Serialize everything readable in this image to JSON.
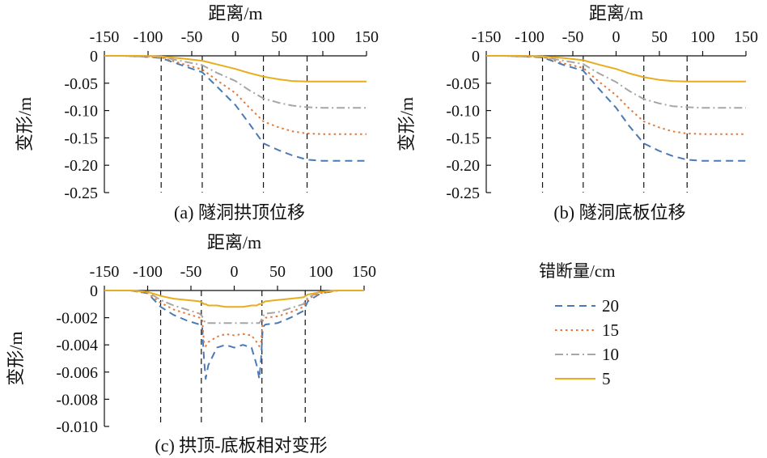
{
  "legend": {
    "title": "错断量/cm",
    "entries": [
      {
        "label": "20",
        "color": "#4a7ab5",
        "dash": "dashed"
      },
      {
        "label": "15",
        "color": "#e07a3c",
        "dash": "dotted"
      },
      {
        "label": "10",
        "color": "#a6a6a6",
        "dash": "dashdot"
      },
      {
        "label": "5",
        "color": "#e8ad1d",
        "dash": "solid"
      }
    ]
  },
  "chart_data": [
    {
      "id": "a",
      "type": "line",
      "caption": "(a) 隧洞拱顶位移",
      "xlabel": "距离/m",
      "ylabel": "变形/m",
      "xlim": [
        -150,
        150
      ],
      "ylim": [
        -0.25,
        0
      ],
      "xticks": [
        "-150",
        "-100",
        "-50",
        "0",
        "50",
        "100",
        "150"
      ],
      "yticks": [
        "0",
        "-0.05",
        "-0.10",
        "-0.15",
        "-0.20",
        "-0.25"
      ],
      "ytick_values": [
        0,
        -0.05,
        -0.1,
        -0.15,
        -0.2,
        -0.25
      ],
      "x_axis_position": "top",
      "reference_lines_x": [
        -85,
        -38,
        32,
        82
      ],
      "x": [
        -150,
        -130,
        -110,
        -85,
        -60,
        -38,
        -20,
        0,
        15,
        32,
        50,
        65,
        82,
        100,
        120,
        150
      ],
      "series": [
        {
          "name": "20",
          "values": [
            0,
            0,
            -0.001,
            -0.004,
            -0.018,
            -0.03,
            -0.058,
            -0.09,
            -0.122,
            -0.16,
            -0.173,
            -0.182,
            -0.19,
            -0.192,
            -0.192,
            -0.192
          ]
        },
        {
          "name": "15",
          "values": [
            0,
            0,
            -0.001,
            -0.003,
            -0.015,
            -0.025,
            -0.046,
            -0.068,
            -0.093,
            -0.12,
            -0.131,
            -0.138,
            -0.142,
            -0.143,
            -0.143,
            -0.143
          ]
        },
        {
          "name": "10",
          "values": [
            0,
            0,
            -0.001,
            -0.002,
            -0.01,
            -0.017,
            -0.032,
            -0.046,
            -0.062,
            -0.078,
            -0.086,
            -0.091,
            -0.094,
            -0.095,
            -0.095,
            -0.095
          ]
        },
        {
          "name": "5",
          "values": [
            0,
            0,
            0,
            -0.001,
            -0.005,
            -0.009,
            -0.016,
            -0.024,
            -0.031,
            -0.038,
            -0.043,
            -0.046,
            -0.047,
            -0.047,
            -0.047,
            -0.047
          ]
        }
      ]
    },
    {
      "id": "b",
      "type": "line",
      "caption": "(b) 隧洞底板位移",
      "xlabel": "距离/m",
      "ylabel": "变形/m",
      "xlim": [
        -150,
        150
      ],
      "ylim": [
        -0.25,
        0
      ],
      "xticks": [
        "-150",
        "-100",
        "-50",
        "0",
        "50",
        "100",
        "150"
      ],
      "yticks": [
        "0",
        "-0.05",
        "-0.10",
        "-0.15",
        "-0.20",
        "-0.25"
      ],
      "ytick_values": [
        0,
        -0.05,
        -0.1,
        -0.15,
        -0.2,
        -0.25
      ],
      "x_axis_position": "top",
      "reference_lines_x": [
        -85,
        -38,
        32,
        82
      ],
      "x": [
        -150,
        -130,
        -110,
        -85,
        -60,
        -38,
        -20,
        0,
        15,
        32,
        50,
        65,
        82,
        100,
        120,
        150
      ],
      "series": [
        {
          "name": "20",
          "values": [
            0,
            0,
            -0.001,
            -0.003,
            -0.017,
            -0.027,
            -0.06,
            -0.095,
            -0.128,
            -0.16,
            -0.174,
            -0.183,
            -0.19,
            -0.192,
            -0.192,
            -0.192
          ]
        },
        {
          "name": "15",
          "values": [
            0,
            0,
            -0.001,
            -0.002,
            -0.014,
            -0.022,
            -0.047,
            -0.072,
            -0.096,
            -0.12,
            -0.131,
            -0.138,
            -0.142,
            -0.143,
            -0.143,
            -0.143
          ]
        },
        {
          "name": "10",
          "values": [
            0,
            0,
            -0.001,
            -0.002,
            -0.009,
            -0.015,
            -0.032,
            -0.048,
            -0.064,
            -0.079,
            -0.087,
            -0.092,
            -0.094,
            -0.095,
            -0.095,
            -0.095
          ]
        },
        {
          "name": "5",
          "values": [
            0,
            0,
            0,
            -0.001,
            -0.004,
            -0.008,
            -0.016,
            -0.024,
            -0.032,
            -0.039,
            -0.044,
            -0.046,
            -0.047,
            -0.047,
            -0.047,
            -0.047
          ]
        }
      ]
    },
    {
      "id": "c",
      "type": "line",
      "caption": "(c) 拱顶-底板相对变形",
      "xlabel": "距离/m",
      "ylabel": "变形/m",
      "xlim": [
        -150,
        150
      ],
      "ylim": [
        -0.01,
        0
      ],
      "xticks": [
        "-150",
        "-100",
        "-50",
        "0",
        "50",
        "100",
        "150"
      ],
      "yticks": [
        "0",
        "-0.002",
        "-0.004",
        "-0.006",
        "-0.008",
        "-0.010"
      ],
      "ytick_values": [
        0,
        -0.002,
        -0.004,
        -0.006,
        -0.008,
        -0.01
      ],
      "x_axis_position": "top",
      "reference_lines_x": [
        -85,
        -38,
        32,
        82
      ],
      "x": [
        -150,
        -120,
        -100,
        -85,
        -70,
        -55,
        -40,
        -37,
        -35,
        -33,
        -30,
        -20,
        -10,
        0,
        10,
        20,
        26,
        29,
        31,
        33,
        36,
        50,
        65,
        80,
        85,
        100,
        120,
        150
      ],
      "series": [
        {
          "name": "20",
          "values": [
            0,
            0,
            -0.0002,
            -0.0012,
            -0.0018,
            -0.0022,
            -0.0025,
            -0.0027,
            -0.005,
            -0.0065,
            -0.0055,
            -0.0042,
            -0.004,
            -0.0042,
            -0.004,
            -0.0042,
            -0.0055,
            -0.0065,
            -0.005,
            -0.0027,
            -0.0025,
            -0.0024,
            -0.002,
            -0.0015,
            -0.0008,
            -0.0002,
            0,
            0
          ]
        },
        {
          "name": "15",
          "values": [
            0,
            0,
            -0.0002,
            -0.0009,
            -0.0014,
            -0.0017,
            -0.002,
            -0.0021,
            -0.0038,
            -0.0041,
            -0.0038,
            -0.0034,
            -0.0032,
            -0.0033,
            -0.0032,
            -0.0033,
            -0.0038,
            -0.0041,
            -0.0038,
            -0.0021,
            -0.002,
            -0.0019,
            -0.0016,
            -0.0012,
            -0.0006,
            -0.0002,
            0,
            0
          ]
        },
        {
          "name": "10",
          "values": [
            0,
            0,
            -0.0001,
            -0.0007,
            -0.0011,
            -0.0014,
            -0.0017,
            -0.0019,
            -0.0022,
            -0.0024,
            -0.0024,
            -0.0024,
            -0.0024,
            -0.0024,
            -0.0024,
            -0.0024,
            -0.0024,
            -0.0024,
            -0.0022,
            -0.0019,
            -0.0017,
            -0.0016,
            -0.0013,
            -0.001,
            -0.0005,
            -0.0001,
            0,
            0
          ]
        },
        {
          "name": "5",
          "values": [
            0,
            0,
            -0.0001,
            -0.0004,
            -0.0006,
            -0.0007,
            -0.0008,
            -0.0009,
            -0.001,
            -0.001,
            -0.0011,
            -0.0011,
            -0.0012,
            -0.0012,
            -0.0012,
            -0.0011,
            -0.0011,
            -0.001,
            -0.001,
            -0.0009,
            -0.0008,
            -0.0007,
            -0.0006,
            -0.0005,
            -0.0003,
            -0.0001,
            0,
            0
          ]
        }
      ]
    }
  ]
}
